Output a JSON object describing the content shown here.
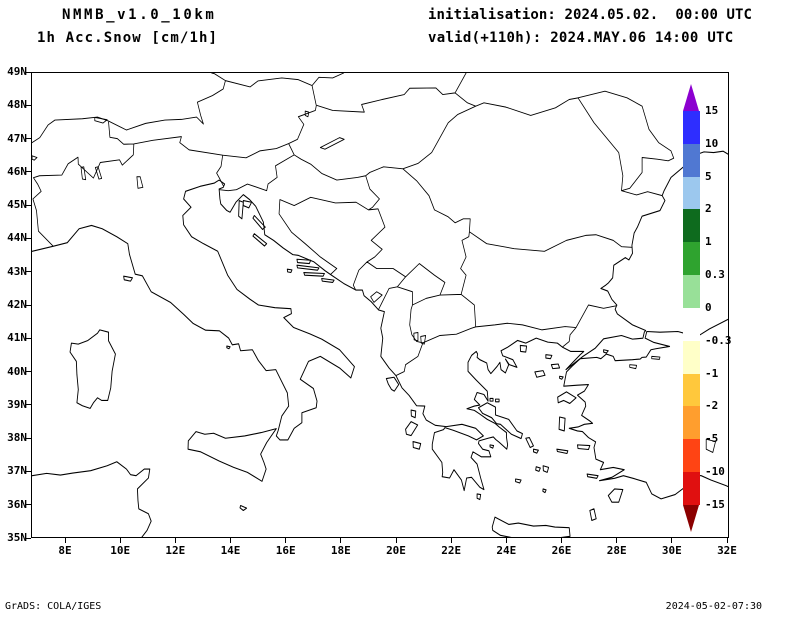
{
  "header": {
    "model": "NMMB_v1.0_10km",
    "variable": "1h Acc.Snow [cm/1h]",
    "init": "initialisation: 2024.05.02.  00:00 UTC",
    "valid": "valid(+110h): 2024.MAY.06 14:00 UTC"
  },
  "axes": {
    "lat_labels": [
      "49N",
      "48N",
      "47N",
      "46N",
      "45N",
      "44N",
      "43N",
      "42N",
      "41N",
      "40N",
      "39N",
      "38N",
      "37N",
      "36N",
      "35N"
    ],
    "lon_labels": [
      "8E",
      "10E",
      "12E",
      "14E",
      "16E",
      "18E",
      "20E",
      "22E",
      "24E",
      "26E",
      "28E",
      "30E",
      "32E"
    ]
  },
  "colorbar": {
    "labels": [
      "15",
      "10",
      "5",
      "2",
      "1",
      "0.3",
      "0",
      "-0.3",
      "-1",
      "-2",
      "-5",
      "-10",
      "-15"
    ],
    "segment_colors": [
      "#2e2eff",
      "#5078d2",
      "#9cc8ee",
      "#0e6b1e",
      "#2fa32f",
      "#98e098",
      "#ffffff",
      "#ffffc8",
      "#ffc83c",
      "#ff9e2e",
      "#ff4414",
      "#e01010"
    ],
    "arrow_top_color": "#8c00d0",
    "arrow_bottom_color": "#8b0000"
  },
  "footer": {
    "left": "GrADS: COLA/IGES",
    "right": "2024-05-02-07:30"
  }
}
